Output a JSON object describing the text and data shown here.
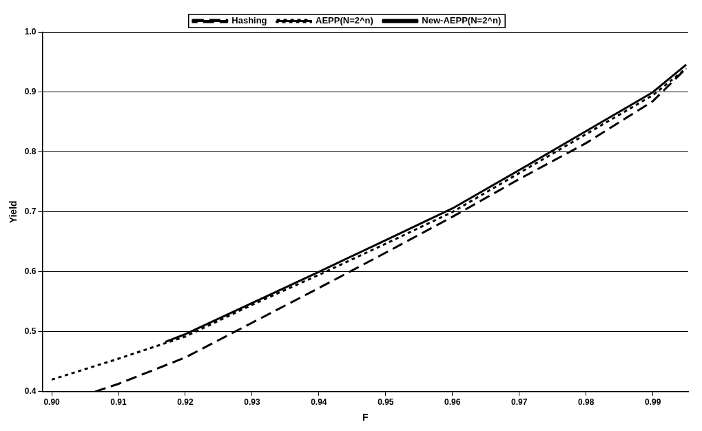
{
  "chart_data": {
    "type": "line",
    "xlabel": "F",
    "ylabel": "Yield",
    "xlim": [
      0.8986,
      0.9953
    ],
    "xticks": [
      {
        "value": 0.9,
        "label": "0.90"
      },
      {
        "value": 0.91,
        "label": "0.91"
      },
      {
        "value": 0.92,
        "label": "0.92"
      },
      {
        "value": 0.93,
        "label": "0.93"
      },
      {
        "value": 0.94,
        "label": "0.94"
      },
      {
        "value": 0.95,
        "label": "0.95"
      },
      {
        "value": 0.96,
        "label": "0.96"
      },
      {
        "value": 0.97,
        "label": "0.97"
      },
      {
        "value": 0.98,
        "label": "0.98"
      },
      {
        "value": 0.99,
        "label": "0.99"
      }
    ],
    "ylim": [
      0.4,
      1.0
    ],
    "yticks": [
      0.4,
      0.5,
      0.6,
      0.7,
      0.8,
      0.9,
      {
        "value": 1.0,
        "label": "1.0"
      }
    ],
    "grid": "y",
    "legend": "top",
    "marker": "none",
    "series": [
      {
        "name": "Hashing",
        "color": "#000000",
        "line_style": "dashed",
        "x": [
          0.9065,
          0.91,
          0.92,
          0.93,
          0.94,
          0.95,
          0.96,
          0.97,
          0.98,
          0.99,
          0.995
        ],
        "values": [
          0.4,
          0.413,
          0.457,
          0.515,
          0.573,
          0.632,
          0.692,
          0.755,
          0.815,
          0.885,
          0.94
        ]
      },
      {
        "name": "AEPP(N=2^n)",
        "color": "#000000",
        "line_style": "dotted",
        "x": [
          0.9,
          0.91,
          0.92,
          0.93,
          0.94,
          0.95,
          0.96,
          0.97,
          0.98,
          0.99,
          0.995
        ],
        "values": [
          0.42,
          0.455,
          0.492,
          0.545,
          0.595,
          0.647,
          0.7,
          0.765,
          0.83,
          0.895,
          0.94
        ]
      },
      {
        "name": "New-AEPP(N=2^n)",
        "color": "#000000",
        "line_style": "solid",
        "x": [
          0.917,
          0.92,
          0.93,
          0.94,
          0.95,
          0.96,
          0.97,
          0.98,
          0.99,
          0.995
        ],
        "values": [
          0.483,
          0.496,
          0.548,
          0.6,
          0.653,
          0.706,
          0.77,
          0.835,
          0.9,
          0.946
        ]
      }
    ]
  }
}
